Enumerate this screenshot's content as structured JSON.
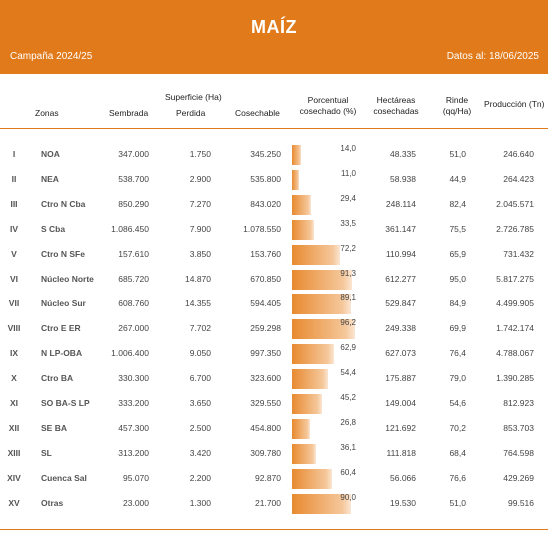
{
  "header": {
    "title": "MAÍZ",
    "campaign": "Campaña 2024/25",
    "date": "Datos al: 18/06/2025",
    "color": "#E07A1A"
  },
  "columns": {
    "zonas": "Zonas",
    "superficie": "Superficie (Ha)",
    "sembrada": "Sembrada",
    "perdida": "Perdida",
    "cosechable": "Cosechable",
    "porcentual_1": "Porcentual",
    "porcentual_2": "cosechado (%)",
    "hectareas_1": "Hectáreas",
    "hectareas_2": "cosechadas",
    "rinde_1": "Rinde",
    "rinde_2": "(qq/Ha)",
    "produccion": "Producción (Tn)"
  },
  "rows": [
    {
      "num": "I",
      "zona": "NOA",
      "sembrada": "347.000",
      "perdida": "1.750",
      "cosechable": "345.250",
      "pct": "14,0",
      "pct_value": 14.0,
      "hectareas": "48.335",
      "rinde": "51,0",
      "produccion": "246.640"
    },
    {
      "num": "II",
      "zona": "NEA",
      "sembrada": "538.700",
      "perdida": "2.900",
      "cosechable": "535.800",
      "pct": "11,0",
      "pct_value": 11.0,
      "hectareas": "58.938",
      "rinde": "44,9",
      "produccion": "264.423"
    },
    {
      "num": "III",
      "zona": "Ctro N Cba",
      "sembrada": "850.290",
      "perdida": "7.270",
      "cosechable": "843.020",
      "pct": "29,4",
      "pct_value": 29.4,
      "hectareas": "248.114",
      "rinde": "82,4",
      "produccion": "2.045.571"
    },
    {
      "num": "IV",
      "zona": "S Cba",
      "sembrada": "1.086.450",
      "perdida": "7.900",
      "cosechable": "1.078.550",
      "pct": "33,5",
      "pct_value": 33.5,
      "hectareas": "361.147",
      "rinde": "75,5",
      "produccion": "2.726.785"
    },
    {
      "num": "V",
      "zona": "Ctro N SFe",
      "sembrada": "157.610",
      "perdida": "3.850",
      "cosechable": "153.760",
      "pct": "72,2",
      "pct_value": 72.2,
      "hectareas": "110.994",
      "rinde": "65,9",
      "produccion": "731.432"
    },
    {
      "num": "VI",
      "zona": "Núcleo Norte",
      "sembrada": "685.720",
      "perdida": "14.870",
      "cosechable": "670.850",
      "pct": "91,3",
      "pct_value": 91.3,
      "hectareas": "612.277",
      "rinde": "95,0",
      "produccion": "5.817.275"
    },
    {
      "num": "VII",
      "zona": "Núcleo Sur",
      "sembrada": "608.760",
      "perdida": "14.355",
      "cosechable": "594.405",
      "pct": "89,1",
      "pct_value": 89.1,
      "hectareas": "529.847",
      "rinde": "84,9",
      "produccion": "4.499.905"
    },
    {
      "num": "VIII",
      "zona": "Ctro E ER",
      "sembrada": "267.000",
      "perdida": "7.702",
      "cosechable": "259.298",
      "pct": "96,2",
      "pct_value": 96.2,
      "hectareas": "249.338",
      "rinde": "69,9",
      "produccion": "1.742.174"
    },
    {
      "num": "IX",
      "zona": "N LP-OBA",
      "sembrada": "1.006.400",
      "perdida": "9.050",
      "cosechable": "997.350",
      "pct": "62,9",
      "pct_value": 62.9,
      "hectareas": "627.073",
      "rinde": "76,4",
      "produccion": "4.788.067"
    },
    {
      "num": "X",
      "zona": "Ctro BA",
      "sembrada": "330.300",
      "perdida": "6.700",
      "cosechable": "323.600",
      "pct": "54,4",
      "pct_value": 54.4,
      "hectareas": "175.887",
      "rinde": "79,0",
      "produccion": "1.390.285"
    },
    {
      "num": "XI",
      "zona": "SO BA-S LP",
      "sembrada": "333.200",
      "perdida": "3.650",
      "cosechable": "329.550",
      "pct": "45,2",
      "pct_value": 45.2,
      "hectareas": "149.004",
      "rinde": "54,6",
      "produccion": "812.923"
    },
    {
      "num": "XII",
      "zona": "SE BA",
      "sembrada": "457.300",
      "perdida": "2.500",
      "cosechable": "454.800",
      "pct": "26,8",
      "pct_value": 26.8,
      "hectareas": "121.692",
      "rinde": "70,2",
      "produccion": "853.703"
    },
    {
      "num": "XIII",
      "zona": "SL",
      "sembrada": "313.200",
      "perdida": "3.420",
      "cosechable": "309.780",
      "pct": "36,1",
      "pct_value": 36.1,
      "hectareas": "111.818",
      "rinde": "68,4",
      "produccion": "764.598"
    },
    {
      "num": "XIV",
      "zona": "Cuenca Sal",
      "sembrada": "95.070",
      "perdida": "2.200",
      "cosechable": "92.870",
      "pct": "60,4",
      "pct_value": 60.4,
      "hectareas": "56.066",
      "rinde": "76,6",
      "produccion": "429.269"
    },
    {
      "num": "XV",
      "zona": "Otras",
      "sembrada": "23.000",
      "perdida": "1.300",
      "cosechable": "21.700",
      "pct": "90,0",
      "pct_value": 90.0,
      "hectareas": "19.530",
      "rinde": "51,0",
      "produccion": "99.516"
    }
  ]
}
